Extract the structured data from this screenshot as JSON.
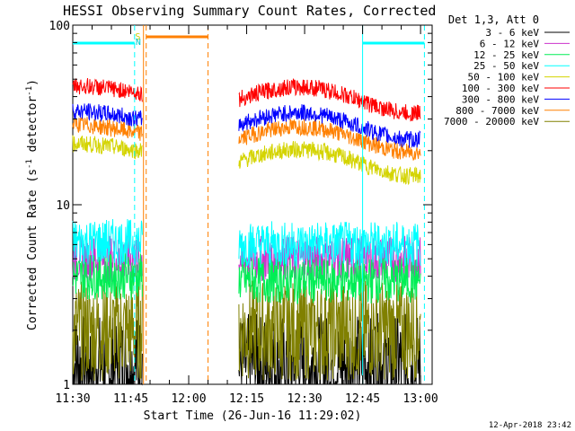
{
  "chart_data": {
    "type": "line",
    "title": "HESSI Observing Summary Count Rates, Corrected",
    "xlabel": "Start Time (26-Jun-16 11:29:02)",
    "ylabel_main": "Corrected Count Rate (s",
    "ylabel_sup": "-1",
    "ylabel_mid": " detector",
    "ylabel_end": ")",
    "yscale": "log",
    "ylim": [
      1,
      100
    ],
    "xlim_minutes": [
      690,
      783
    ],
    "y_ticks": [
      {
        "value": 1,
        "label": "1"
      },
      {
        "value": 10,
        "label": "10"
      },
      {
        "value": 100,
        "label": "100"
      }
    ],
    "x_ticks": [
      {
        "value": 690,
        "label": "11:30"
      },
      {
        "value": 705,
        "label": "11:45"
      },
      {
        "value": 720,
        "label": "12:00"
      },
      {
        "value": 735,
        "label": "12:15"
      },
      {
        "value": 750,
        "label": "12:30"
      },
      {
        "value": 765,
        "label": "12:45"
      },
      {
        "value": 780,
        "label": "13:00"
      }
    ],
    "legend_title": "Det 1,3, Att 0",
    "legend_position": "right",
    "series": [
      {
        "name": "3 - 6 keV",
        "color": "#000000",
        "segments": [
          [
            690,
            708,
            1.3,
            1.3
          ],
          [
            733,
            780,
            1.3,
            1.3
          ]
        ]
      },
      {
        "name": "6 - 12 keV",
        "color": "#cc33cc",
        "segments": [
          [
            690,
            708,
            5.0,
            5.0
          ],
          [
            733,
            780,
            5.0,
            5.0
          ]
        ]
      },
      {
        "name": "12 - 25 keV",
        "color": "#00ee55",
        "segments": [
          [
            690,
            708,
            4.0,
            4.0
          ],
          [
            733,
            780,
            3.8,
            3.8
          ]
        ]
      },
      {
        "name": "25 - 50 keV",
        "color": "#00ffff",
        "segments": [
          [
            690,
            708,
            6.2,
            6.2
          ],
          [
            733,
            780,
            6.0,
            6.0
          ]
        ]
      },
      {
        "name": "50 - 100 keV",
        "color": "#d4d400",
        "segments": [
          [
            690,
            708,
            21,
            20
          ],
          [
            733,
            780,
            18,
            17
          ]
        ]
      },
      {
        "name": "100 - 300 keV",
        "color": "#ff0000",
        "segments": [
          [
            690,
            708,
            44,
            42
          ],
          [
            733,
            780,
            40,
            38
          ]
        ]
      },
      {
        "name": "300 - 800 keV",
        "color": "#0000ff",
        "segments": [
          [
            690,
            708,
            32,
            30
          ],
          [
            733,
            780,
            29,
            27
          ]
        ]
      },
      {
        "name": "800 - 7000 keV",
        "color": "#ff8000",
        "segments": [
          [
            690,
            708,
            27,
            25
          ],
          [
            733,
            780,
            24,
            23
          ]
        ]
      },
      {
        "name": "7000 - 20000 keV",
        "color": "#808000",
        "segments": [
          [
            690,
            708,
            2.0,
            2.0
          ],
          [
            733,
            780,
            2.0,
            2.0
          ]
        ]
      }
    ],
    "annotations": {
      "saa_marker": "S",
      "night_marker": "N",
      "cyan_bars": [
        [
          690,
          706
        ],
        [
          765,
          781
        ]
      ],
      "orange_bar": [
        709,
        725
      ],
      "dashed_lines": [
        {
          "x": 706,
          "color": "#00ffff"
        },
        {
          "x": 709,
          "color": "#ff8000"
        },
        {
          "x": 725,
          "color": "#ff8000"
        },
        {
          "x": 781,
          "color": "#00ffff"
        }
      ],
      "solid_lines": [
        {
          "x": 708.3,
          "color": "#ff8000"
        },
        {
          "x": 765,
          "color": "#00ffff"
        }
      ]
    }
  },
  "footer": {
    "timestamp": "12-Apr-2018 23:42"
  }
}
